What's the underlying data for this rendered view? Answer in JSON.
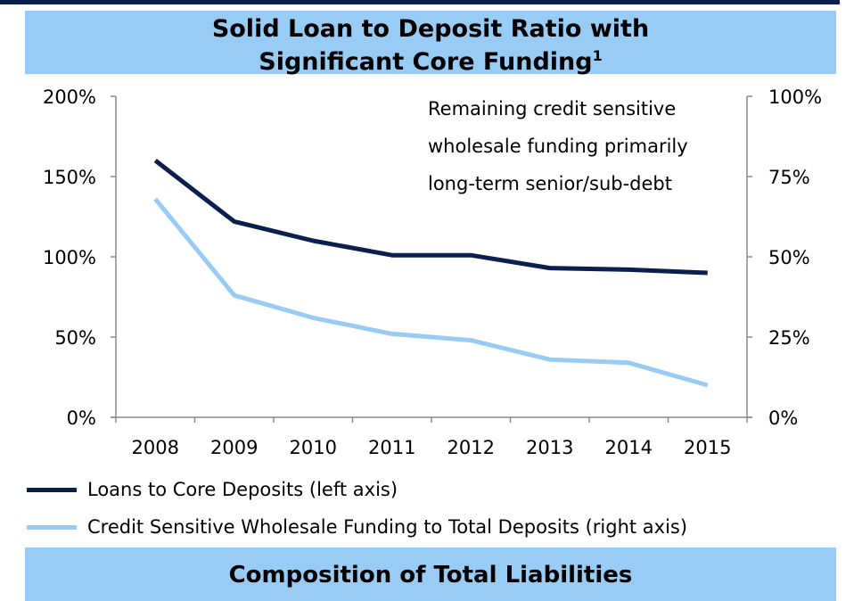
{
  "header": {
    "title_line1": "Solid Loan to Deposit Ratio with",
    "title_line2": "Significant Core Funding",
    "title_footnote": "1"
  },
  "footer": {
    "next_title": "Composition of Total Liabilities"
  },
  "annotation": {
    "lines": [
      "Remaining credit sensitive",
      "wholesale funding primarily",
      "long-term senior/sub-debt"
    ]
  },
  "legend": {
    "items": [
      {
        "label": "Loans to Core Deposits (left axis)",
        "color": "#0a1f4d"
      },
      {
        "label": "Credit Sensitive Wholesale Funding to Total Deposits (right axis)",
        "color": "#99ccf5"
      }
    ]
  },
  "chart_data": {
    "type": "line",
    "categories": [
      "2008",
      "2009",
      "2010",
      "2011",
      "2012",
      "2013",
      "2014",
      "2015"
    ],
    "series": [
      {
        "name": "Loans to Core Deposits (left axis)",
        "axis": "left",
        "color": "#0a1f4d",
        "values": [
          160,
          122,
          110,
          101,
          101,
          93,
          92,
          90
        ]
      },
      {
        "name": "Credit Sensitive Wholesale Funding to Total Deposits (right axis)",
        "axis": "right",
        "color": "#99ccf5",
        "values": [
          68,
          38,
          31,
          26,
          24,
          18,
          17,
          10
        ]
      }
    ],
    "y_left": {
      "range": [
        0,
        200
      ],
      "ticks": [
        "0%",
        "50%",
        "100%",
        "150%",
        "200%"
      ],
      "tick_values": [
        0,
        50,
        100,
        150,
        200
      ]
    },
    "y_right": {
      "range": [
        0,
        100
      ],
      "ticks": [
        "0%",
        "25%",
        "50%",
        "75%",
        "100%"
      ],
      "tick_values": [
        0,
        25,
        50,
        75,
        100
      ]
    },
    "grid": false,
    "legend_position": "bottom-left"
  }
}
